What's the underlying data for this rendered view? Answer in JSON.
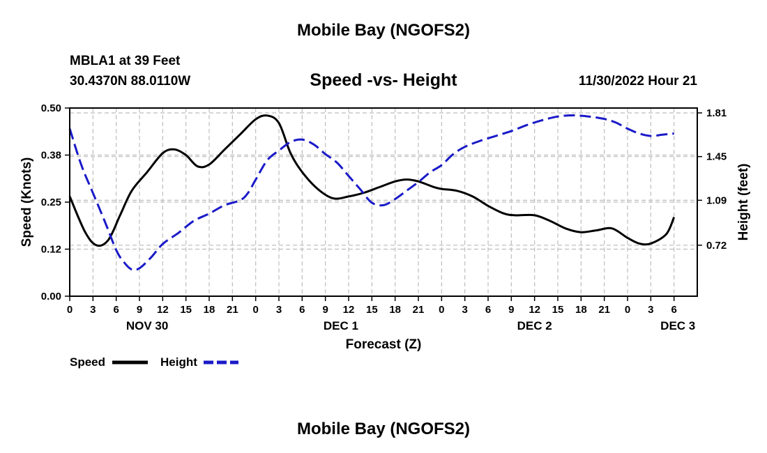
{
  "colors": {
    "speed": "#000000",
    "height": "#1a1ac8",
    "grid": "#bdbdbd"
  },
  "header": {
    "main_title": "Mobile Bay (NGOFS2)",
    "station": "MBLA1 at 39 Feet",
    "coords": "30.4370N  88.0110W",
    "chart_title": "Speed -vs- Height",
    "datetime": "11/30/2022 Hour 21"
  },
  "footer": {
    "repeat_title": "Mobile Bay (NGOFS2)"
  },
  "legend": {
    "speed_label": "Speed",
    "height_label": "Height"
  },
  "chart_data": {
    "type": "line",
    "title": "Speed -vs- Height",
    "xlabel": "Forecast (Z)",
    "ylabel_left": "Speed (Knots)",
    "ylabel_right": "Height (feet)",
    "xlim": [
      0,
      81
    ],
    "ylim_left": [
      0.0,
      0.5
    ],
    "ylim_right": [
      0.3,
      1.85
    ],
    "left_ticks": [
      {
        "value": 0.0,
        "label": "0.00"
      },
      {
        "value": 0.125,
        "label": "0.12"
      },
      {
        "value": 0.25,
        "label": "0.25"
      },
      {
        "value": 0.375,
        "label": "0.38"
      },
      {
        "value": 0.5,
        "label": "0.50"
      }
    ],
    "right_ticks": [
      {
        "value": 0.72,
        "label": "0.72"
      },
      {
        "value": 1.09,
        "label": "1.09"
      },
      {
        "value": 1.45,
        "label": "1.45"
      },
      {
        "value": 1.81,
        "label": "1.81"
      }
    ],
    "x_ticks": [
      {
        "hour": 0,
        "label": "0"
      },
      {
        "hour": 3,
        "label": "3"
      },
      {
        "hour": 6,
        "label": "6"
      },
      {
        "hour": 9,
        "label": "9"
      },
      {
        "hour": 12,
        "label": "12"
      },
      {
        "hour": 15,
        "label": "15"
      },
      {
        "hour": 18,
        "label": "18"
      },
      {
        "hour": 21,
        "label": "21"
      },
      {
        "hour": 24,
        "label": "0"
      },
      {
        "hour": 27,
        "label": "3"
      },
      {
        "hour": 30,
        "label": "6"
      },
      {
        "hour": 33,
        "label": "9"
      },
      {
        "hour": 36,
        "label": "12"
      },
      {
        "hour": 39,
        "label": "15"
      },
      {
        "hour": 42,
        "label": "18"
      },
      {
        "hour": 45,
        "label": "21"
      },
      {
        "hour": 48,
        "label": "0"
      },
      {
        "hour": 51,
        "label": "3"
      },
      {
        "hour": 54,
        "label": "6"
      },
      {
        "hour": 57,
        "label": "9"
      },
      {
        "hour": 60,
        "label": "12"
      },
      {
        "hour": 63,
        "label": "15"
      },
      {
        "hour": 66,
        "label": "18"
      },
      {
        "hour": 69,
        "label": "21"
      },
      {
        "hour": 72,
        "label": "0"
      },
      {
        "hour": 75,
        "label": "3"
      },
      {
        "hour": 78,
        "label": "6"
      }
    ],
    "day_labels": [
      {
        "hour": 10,
        "label": "NOV 30"
      },
      {
        "hour": 35,
        "label": "DEC 1"
      },
      {
        "hour": 60,
        "label": "DEC 2"
      },
      {
        "hour": 78.5,
        "label": "DEC 3"
      }
    ],
    "series": [
      {
        "name": "Speed",
        "axis": "left",
        "style": "solid",
        "x": [
          0,
          2,
          3.5,
          5,
          6.5,
          8,
          10,
          12,
          13.5,
          15,
          16.5,
          18,
          20,
          22,
          24,
          25.5,
          27,
          28.5,
          30,
          32,
          34,
          36,
          38,
          40,
          42,
          43.5,
          45,
          47,
          48,
          50,
          52,
          54,
          56,
          57.5,
          60,
          62,
          64,
          66,
          68,
          70,
          72,
          73.5,
          75,
          77,
          78
        ],
        "values": [
          0.265,
          0.17,
          0.135,
          0.15,
          0.215,
          0.28,
          0.33,
          0.38,
          0.39,
          0.375,
          0.345,
          0.35,
          0.39,
          0.43,
          0.47,
          0.48,
          0.46,
          0.38,
          0.33,
          0.285,
          0.26,
          0.265,
          0.275,
          0.29,
          0.305,
          0.31,
          0.305,
          0.29,
          0.285,
          0.28,
          0.265,
          0.24,
          0.22,
          0.215,
          0.215,
          0.2,
          0.18,
          0.17,
          0.175,
          0.18,
          0.155,
          0.14,
          0.14,
          0.165,
          0.21
        ]
      },
      {
        "name": "Height",
        "axis": "right",
        "style": "dashed",
        "x": [
          0,
          1.5,
          3,
          4.5,
          6,
          7,
          8,
          9,
          10.5,
          12,
          14,
          16,
          18,
          20,
          22,
          23,
          24,
          25.5,
          27,
          28.5,
          30,
          31.5,
          33,
          34.5,
          36,
          37.5,
          39,
          40.5,
          42,
          43.5,
          45,
          46.5,
          48,
          49.5,
          51,
          53,
          55,
          57,
          59,
          61,
          63,
          65,
          67,
          69,
          70.5,
          72,
          73.5,
          75,
          76.5,
          78
        ],
        "values": [
          1.68,
          1.38,
          1.15,
          0.92,
          0.68,
          0.58,
          0.52,
          0.53,
          0.62,
          0.73,
          0.82,
          0.92,
          0.98,
          1.05,
          1.09,
          1.15,
          1.26,
          1.42,
          1.5,
          1.57,
          1.59,
          1.55,
          1.47,
          1.4,
          1.29,
          1.18,
          1.07,
          1.05,
          1.1,
          1.17,
          1.24,
          1.32,
          1.38,
          1.47,
          1.53,
          1.58,
          1.62,
          1.66,
          1.71,
          1.75,
          1.78,
          1.79,
          1.78,
          1.76,
          1.73,
          1.68,
          1.64,
          1.62,
          1.63,
          1.64
        ]
      }
    ]
  }
}
